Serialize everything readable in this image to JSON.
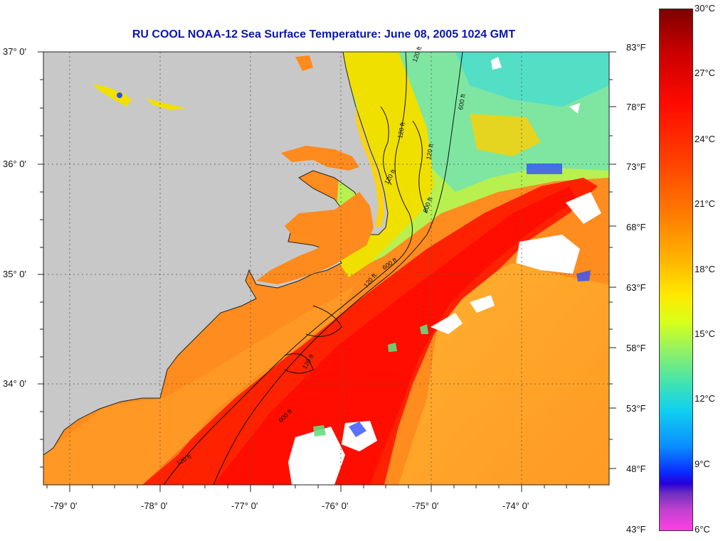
{
  "title": "RU COOL  NOAA-12  Sea Surface Temperature:  June 08, 2005 1024 GMT",
  "lat_labels": [
    "37° 0'",
    "36° 0'",
    "35° 0'",
    "34° 0'"
  ],
  "lon_labels": [
    "-79° 0'",
    "-78° 0'",
    "-77° 0'",
    "-76° 0'",
    "-75° 0'",
    "-74° 0'"
  ],
  "fahrenheit_labels": [
    "83°F",
    "78°F",
    "73°F",
    "68°F",
    "63°F",
    "58°F",
    "53°F",
    "48°F",
    "43°F"
  ],
  "celsius_labels": [
    "30°C",
    "27°C",
    "24°C",
    "21°C",
    "18°C",
    "15°C",
    "12°C",
    "9°C",
    "6°C"
  ],
  "isobath_labels": [
    "120 ft",
    "600 ft",
    "120 ft",
    "600 ft",
    "120 ft",
    "600 ft",
    "120 ft",
    "120 ft",
    "120 ft",
    "600 ft",
    "120 ft"
  ],
  "colors": {
    "land": "#c8c8c8",
    "title": "#0a18a8",
    "gulf_stream": "#ff2a00",
    "shelf_water": "#ff8a1e",
    "cool_water": "#8ff07a",
    "cloud": "#ffffff"
  }
}
